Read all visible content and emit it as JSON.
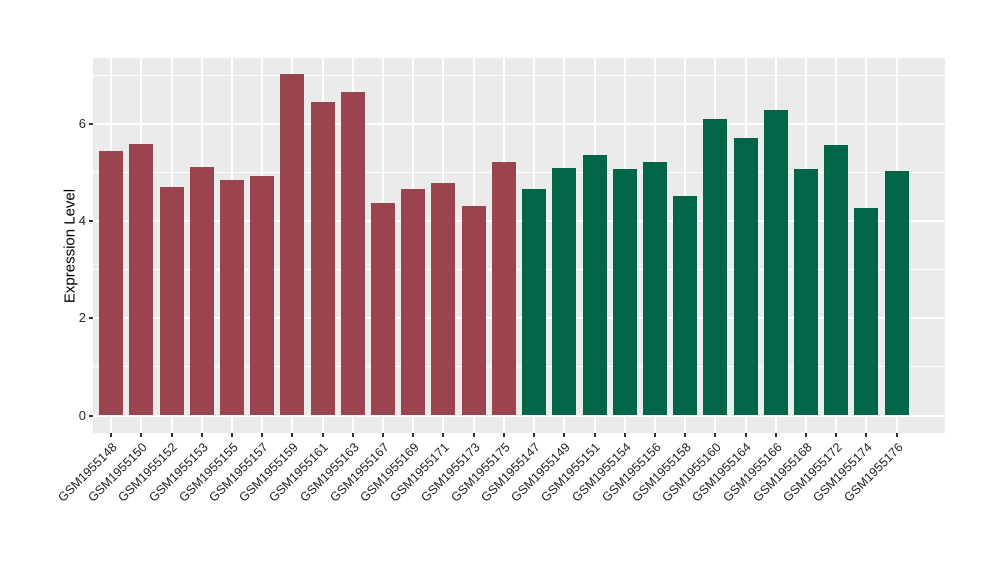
{
  "chart_data": {
    "type": "bar",
    "title": "",
    "xlabel": "",
    "ylabel": "Expression Level",
    "ylim": [
      0,
      7.4
    ],
    "yticks_major": [
      0,
      2,
      4,
      6
    ],
    "yticks_minor": [
      1,
      3,
      5,
      7
    ],
    "legend": "none",
    "style": {
      "panel_bg": "#EBEBEB",
      "gridline_color": "#FFFFFF",
      "tick_color": "#333333",
      "x_labels_rotation_deg": 45
    },
    "groups": [
      {
        "name": "group-1-maroon",
        "color": "#9A4450"
      },
      {
        "name": "group-2-green",
        "color": "#006647"
      }
    ],
    "bars": [
      {
        "label": "GSM1955148",
        "value": 5.45,
        "group": 0
      },
      {
        "label": "GSM1955150",
        "value": 5.58,
        "group": 0
      },
      {
        "label": "GSM1955152",
        "value": 4.71,
        "group": 0
      },
      {
        "label": "GSM1955153",
        "value": 5.12,
        "group": 0
      },
      {
        "label": "GSM1955155",
        "value": 4.85,
        "group": 0
      },
      {
        "label": "GSM1955157",
        "value": 4.93,
        "group": 0
      },
      {
        "label": "GSM1955159",
        "value": 7.03,
        "group": 0
      },
      {
        "label": "GSM1955161",
        "value": 6.45,
        "group": 0
      },
      {
        "label": "GSM1955163",
        "value": 6.66,
        "group": 0
      },
      {
        "label": "GSM1955167",
        "value": 4.38,
        "group": 0
      },
      {
        "label": "GSM1955169",
        "value": 4.67,
        "group": 0
      },
      {
        "label": "GSM1955171",
        "value": 4.78,
        "group": 0
      },
      {
        "label": "GSM1955173",
        "value": 4.31,
        "group": 0
      },
      {
        "label": "GSM1955175",
        "value": 5.22,
        "group": 0
      },
      {
        "label": "GSM1955147",
        "value": 4.67,
        "group": 1
      },
      {
        "label": "GSM1955149",
        "value": 5.09,
        "group": 1
      },
      {
        "label": "GSM1955151",
        "value": 5.37,
        "group": 1
      },
      {
        "label": "GSM1955154",
        "value": 5.07,
        "group": 1
      },
      {
        "label": "GSM1955156",
        "value": 5.21,
        "group": 1
      },
      {
        "label": "GSM1955158",
        "value": 4.52,
        "group": 1
      },
      {
        "label": "GSM1955160",
        "value": 6.1,
        "group": 1
      },
      {
        "label": "GSM1955164",
        "value": 5.71,
        "group": 1
      },
      {
        "label": "GSM1955166",
        "value": 6.29,
        "group": 1
      },
      {
        "label": "GSM1955168",
        "value": 5.07,
        "group": 1
      },
      {
        "label": "GSM1955172",
        "value": 5.57,
        "group": 1
      },
      {
        "label": "GSM1955174",
        "value": 4.27,
        "group": 1
      },
      {
        "label": "GSM1955176",
        "value": 5.04,
        "group": 1
      }
    ]
  }
}
